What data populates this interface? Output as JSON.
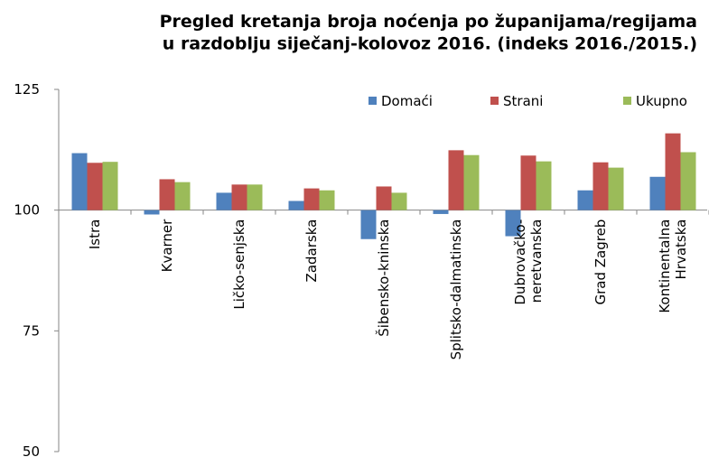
{
  "chart_data": {
    "type": "bar",
    "title": "Pregled kretanja broja noćenja po županijama/regijama\nu razdoblju siječanj-kolovoz 2016. (indeks 2016./2015.)",
    "categories": [
      "Istra",
      "Kvarner",
      "Ličko-senjska",
      "Zadarska",
      "Šibensko-kninska",
      "Splitsko-dalmatinska",
      "Dubrovačko-\nneretvanska",
      "Grad Zagreb",
      "Kontinentalna\nHrvatska"
    ],
    "series": [
      {
        "name": "Domaći",
        "color": "#4f81bd",
        "values": [
          111.8,
          99.1,
          103.6,
          101.9,
          94.0,
          99.2,
          94.6,
          104.1,
          106.9
        ]
      },
      {
        "name": "Strani",
        "color": "#c0504d",
        "values": [
          109.8,
          106.4,
          105.3,
          104.5,
          104.9,
          112.4,
          111.3,
          109.9,
          115.9
        ]
      },
      {
        "name": "Ukupno",
        "color": "#9bbb59",
        "values": [
          110.0,
          105.8,
          105.3,
          104.1,
          103.6,
          111.4,
          110.1,
          108.8,
          112.0
        ]
      }
    ],
    "ylim": [
      50,
      125
    ],
    "yticks": [
      50,
      75,
      100,
      125
    ],
    "x_axis_crosses": 100,
    "legend": "top"
  }
}
